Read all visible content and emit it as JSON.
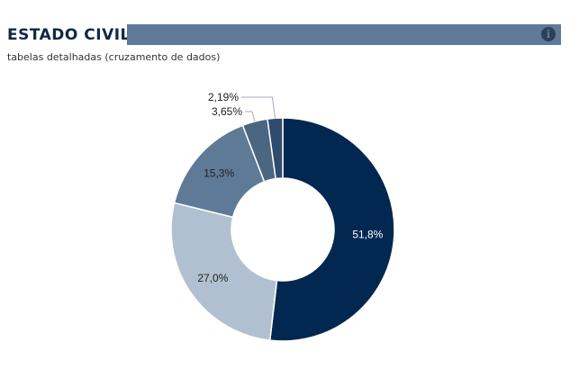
{
  "header": {
    "title": "ESTADO CIVIL",
    "subtitle": "tabelas detalhadas (cruzamento de dados)",
    "info_icon": "info-icon"
  },
  "chart_data": {
    "type": "pie",
    "donut": true,
    "title": "ESTADO CIVIL",
    "values": [
      51.8,
      27.0,
      15.3,
      3.65,
      2.19
    ],
    "labels": [
      "51,8%",
      "27,0%",
      "15,3%",
      "3,65%",
      "2,19%"
    ],
    "colors": [
      "#022851",
      "#b1c0d0",
      "#5f7a97",
      "#4a6680",
      "#2f4b6e"
    ],
    "label_colors": [
      "#ffffff",
      "#222222",
      "#222222",
      "#222222",
      "#222222"
    ]
  }
}
